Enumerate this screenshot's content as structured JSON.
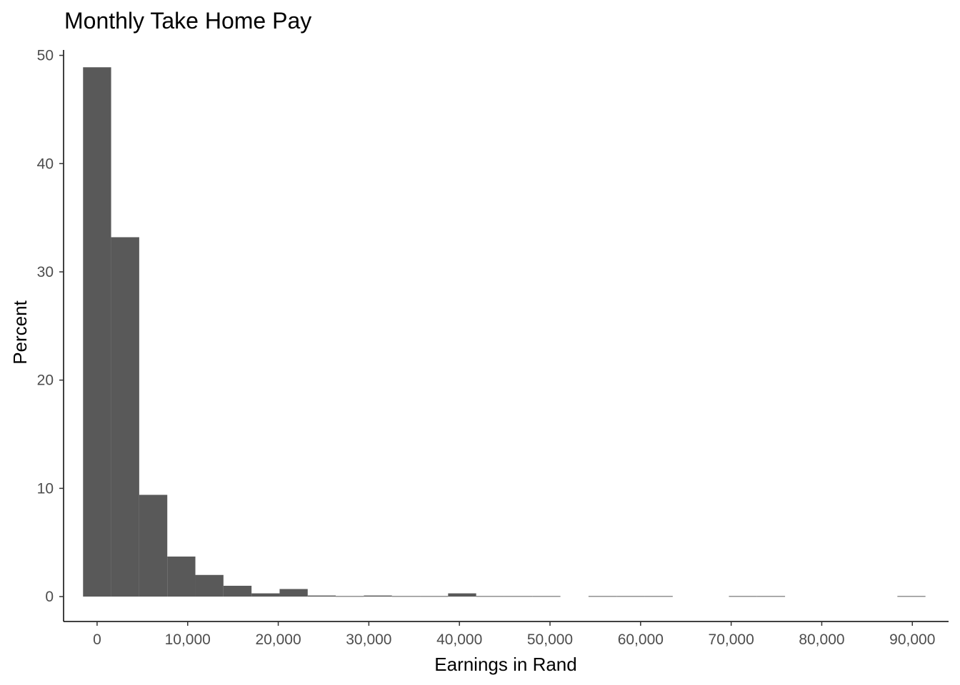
{
  "chart_data": {
    "type": "bar",
    "title": "Monthly Take Home Pay",
    "xlabel": "Earnings in Rand",
    "ylabel": "Percent",
    "xlim": [
      -3700,
      94000
    ],
    "ylim": [
      -2.3,
      50.5
    ],
    "bin_width": 3100,
    "first_bin_start": -1550,
    "values": [
      48.9,
      33.2,
      9.4,
      3.7,
      2.0,
      1.0,
      0.3,
      0.7,
      0.1,
      0.05,
      0.1,
      0.05,
      0.05,
      0.3,
      0.05,
      0.05,
      0.05,
      0,
      0.05,
      0.05,
      0.05,
      0,
      0,
      0.05,
      0.05,
      0,
      0,
      0,
      0,
      0.05
    ],
    "x_ticks": [
      0,
      10000,
      20000,
      30000,
      40000,
      50000,
      60000,
      70000,
      80000,
      90000
    ],
    "x_tick_labels": [
      "0",
      "10,000",
      "20,000",
      "30,000",
      "40,000",
      "50,000",
      "60,000",
      "70,000",
      "80,000",
      "90,000"
    ],
    "y_ticks": [
      0,
      10,
      20,
      30,
      40,
      50
    ],
    "y_tick_labels": [
      "0",
      "10",
      "20",
      "30",
      "40",
      "50"
    ],
    "bar_color": "#595959",
    "grid": false,
    "legend": "none"
  }
}
